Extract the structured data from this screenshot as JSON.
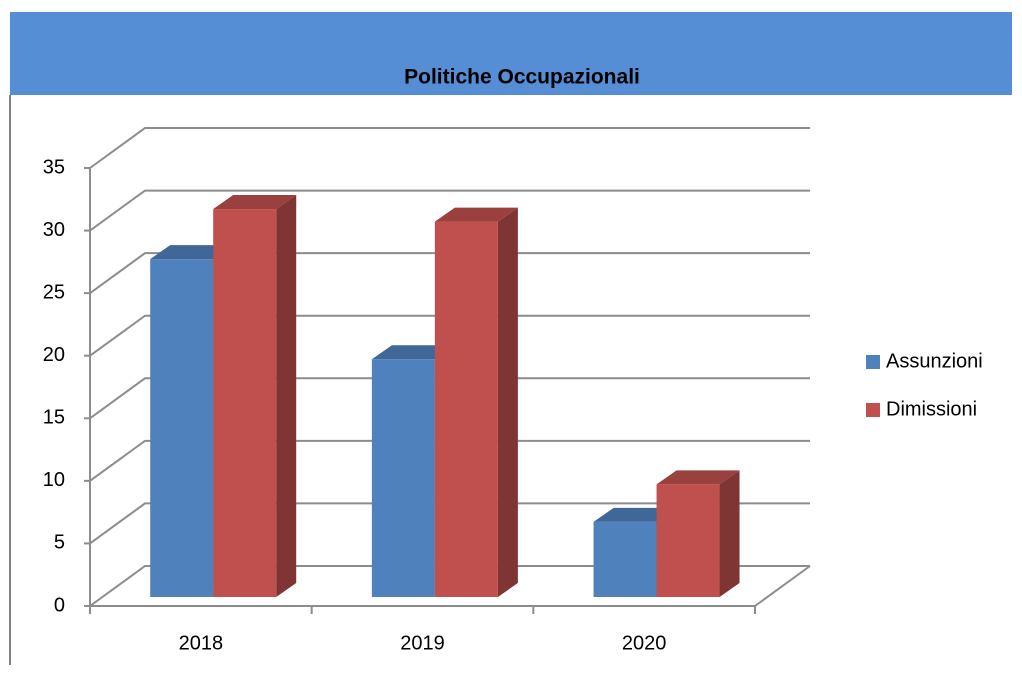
{
  "chart_data": {
    "type": "bar3d",
    "title": "Politiche Occupazionali",
    "categories": [
      "2018",
      "2019",
      "2020"
    ],
    "series": [
      {
        "name": "Assunzioni",
        "color": "#4f81bd",
        "values": [
          27,
          19,
          6
        ]
      },
      {
        "name": "Dimissioni",
        "color": "#c0504d",
        "values": [
          31,
          30,
          9
        ]
      }
    ],
    "ylim": [
      0,
      35
    ],
    "yticks": [
      0,
      5,
      10,
      15,
      20,
      25,
      30,
      35
    ],
    "grid": true,
    "legend": "right"
  }
}
